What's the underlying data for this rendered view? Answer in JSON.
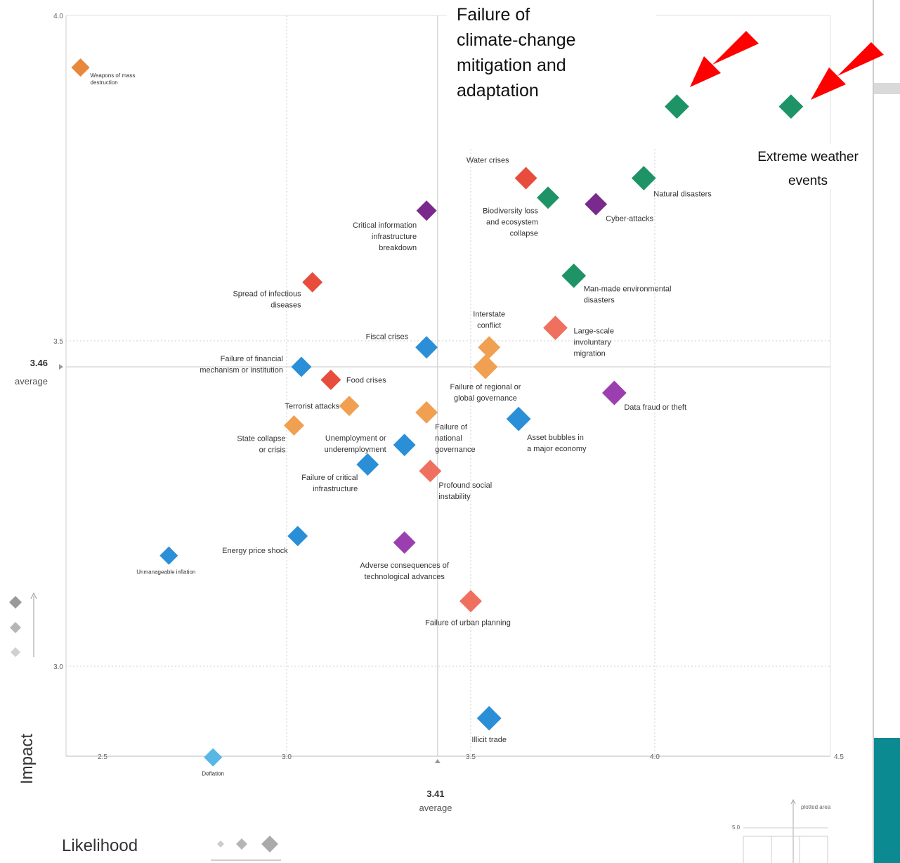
{
  "chart_data": {
    "type": "scatter",
    "xlabel": "Likelihood",
    "ylabel": "Impact",
    "xlim": [
      2.45,
      4.5
    ],
    "ylim": [
      2.72,
      4.0
    ],
    "x_ticks": [
      "2.5",
      "3.0",
      "3.5",
      "4.0",
      "4.5"
    ],
    "y_ticks": [
      "4.0",
      "3.5",
      "3.0"
    ],
    "average_x": {
      "value": "3.41",
      "label": "average",
      "x": 3.41
    },
    "average_y": {
      "value": "3.46",
      "label": "average",
      "y": 3.46
    },
    "grid": true,
    "points": [
      {
        "label": "Weapons of mass destruction",
        "x": 2.44,
        "y": 3.92,
        "color": "#e8883a",
        "size": 9
      },
      {
        "label": "Failure of climate-change mitigation and adaptation",
        "x": 4.06,
        "y": 3.86,
        "color": "#1e9466",
        "size": 12
      },
      {
        "label": "Extreme weather events",
        "x": 4.37,
        "y": 3.86,
        "color": "#1e9466",
        "size": 12
      },
      {
        "label": "Water crises",
        "x": 3.65,
        "y": 3.75,
        "color": "#e84c3d",
        "size": 11
      },
      {
        "label": "Natural disasters",
        "x": 3.97,
        "y": 3.75,
        "color": "#1e9466",
        "size": 12
      },
      {
        "label": "Biodiversity loss and ecosystem collapse",
        "x": 3.71,
        "y": 3.72,
        "color": "#1e9466",
        "size": 11
      },
      {
        "label": "Cyber-attacks",
        "x": 3.84,
        "y": 3.71,
        "color": "#7a2a8c",
        "size": 11
      },
      {
        "label": "Critical information infrastructure breakdown",
        "x": 3.38,
        "y": 3.7,
        "color": "#7a2a8c",
        "size": 10
      },
      {
        "label": "Spread of infectious diseases",
        "x": 3.07,
        "y": 3.59,
        "color": "#e84c3d",
        "size": 10
      },
      {
        "label": "Man-made environmental disasters",
        "x": 3.78,
        "y": 3.6,
        "color": "#1e9466",
        "size": 12
      },
      {
        "label": "Interstate conflict",
        "x": 3.55,
        "y": 3.49,
        "color": "#f0a050",
        "size": 11
      },
      {
        "label": "Large-scale involuntary migration",
        "x": 3.73,
        "y": 3.52,
        "color": "#f07060",
        "size": 12
      },
      {
        "label": "Fiscal crises",
        "x": 3.38,
        "y": 3.49,
        "color": "#2a8fd6",
        "size": 11
      },
      {
        "label": "Failure of financial mechanism or institution",
        "x": 3.04,
        "y": 3.46,
        "color": "#2a8fd6",
        "size": 10
      },
      {
        "label": "Failure of regional or global governance",
        "x": 3.54,
        "y": 3.46,
        "color": "#f0a050",
        "size": 12
      },
      {
        "label": "Food crises",
        "x": 3.12,
        "y": 3.44,
        "color": "#e84c3d",
        "size": 10
      },
      {
        "label": "Data fraud or theft",
        "x": 3.89,
        "y": 3.42,
        "color": "#9b3fb0",
        "size": 12
      },
      {
        "label": "Terrorist attacks",
        "x": 3.17,
        "y": 3.4,
        "color": "#f0a050",
        "size": 10
      },
      {
        "label": "Failure of national governance",
        "x": 3.38,
        "y": 3.39,
        "color": "#f0a050",
        "size": 11
      },
      {
        "label": "Asset bubbles in a major economy",
        "x": 3.63,
        "y": 3.38,
        "color": "#2a8fd6",
        "size": 12
      },
      {
        "label": "State collapse or crisis",
        "x": 3.02,
        "y": 3.37,
        "color": "#f0a050",
        "size": 10
      },
      {
        "label": "Unemployment or underemployment",
        "x": 3.32,
        "y": 3.34,
        "color": "#2a8fd6",
        "size": 11
      },
      {
        "label": "Failure of critical infrastructure",
        "x": 3.22,
        "y": 3.31,
        "color": "#2a8fd6",
        "size": 11
      },
      {
        "label": "Profound social instability",
        "x": 3.39,
        "y": 3.3,
        "color": "#f07060",
        "size": 11
      },
      {
        "label": "Energy price shock",
        "x": 3.03,
        "y": 3.2,
        "color": "#2a8fd6",
        "size": 10
      },
      {
        "label": "Adverse consequences of technological advances",
        "x": 3.32,
        "y": 3.19,
        "color": "#9b3fb0",
        "size": 11
      },
      {
        "label": "Unmanageable inflation",
        "x": 2.68,
        "y": 3.17,
        "color": "#2a8fd6",
        "size": 9
      },
      {
        "label": "Failure of urban planning",
        "x": 3.5,
        "y": 3.1,
        "color": "#f07060",
        "size": 11
      },
      {
        "label": "Illicit trade",
        "x": 3.55,
        "y": 2.92,
        "color": "#2a8fd6",
        "size": 12
      },
      {
        "label": "Deflation",
        "x": 2.8,
        "y": 2.86,
        "color": "#57b8e6",
        "size": 9
      }
    ],
    "annotations": [
      {
        "text": "Failure of climate-change mitigation and adaptation"
      },
      {
        "text": "Extreme weather events"
      }
    ],
    "inset": {
      "title": "plotted area",
      "tick": "5.0"
    }
  }
}
